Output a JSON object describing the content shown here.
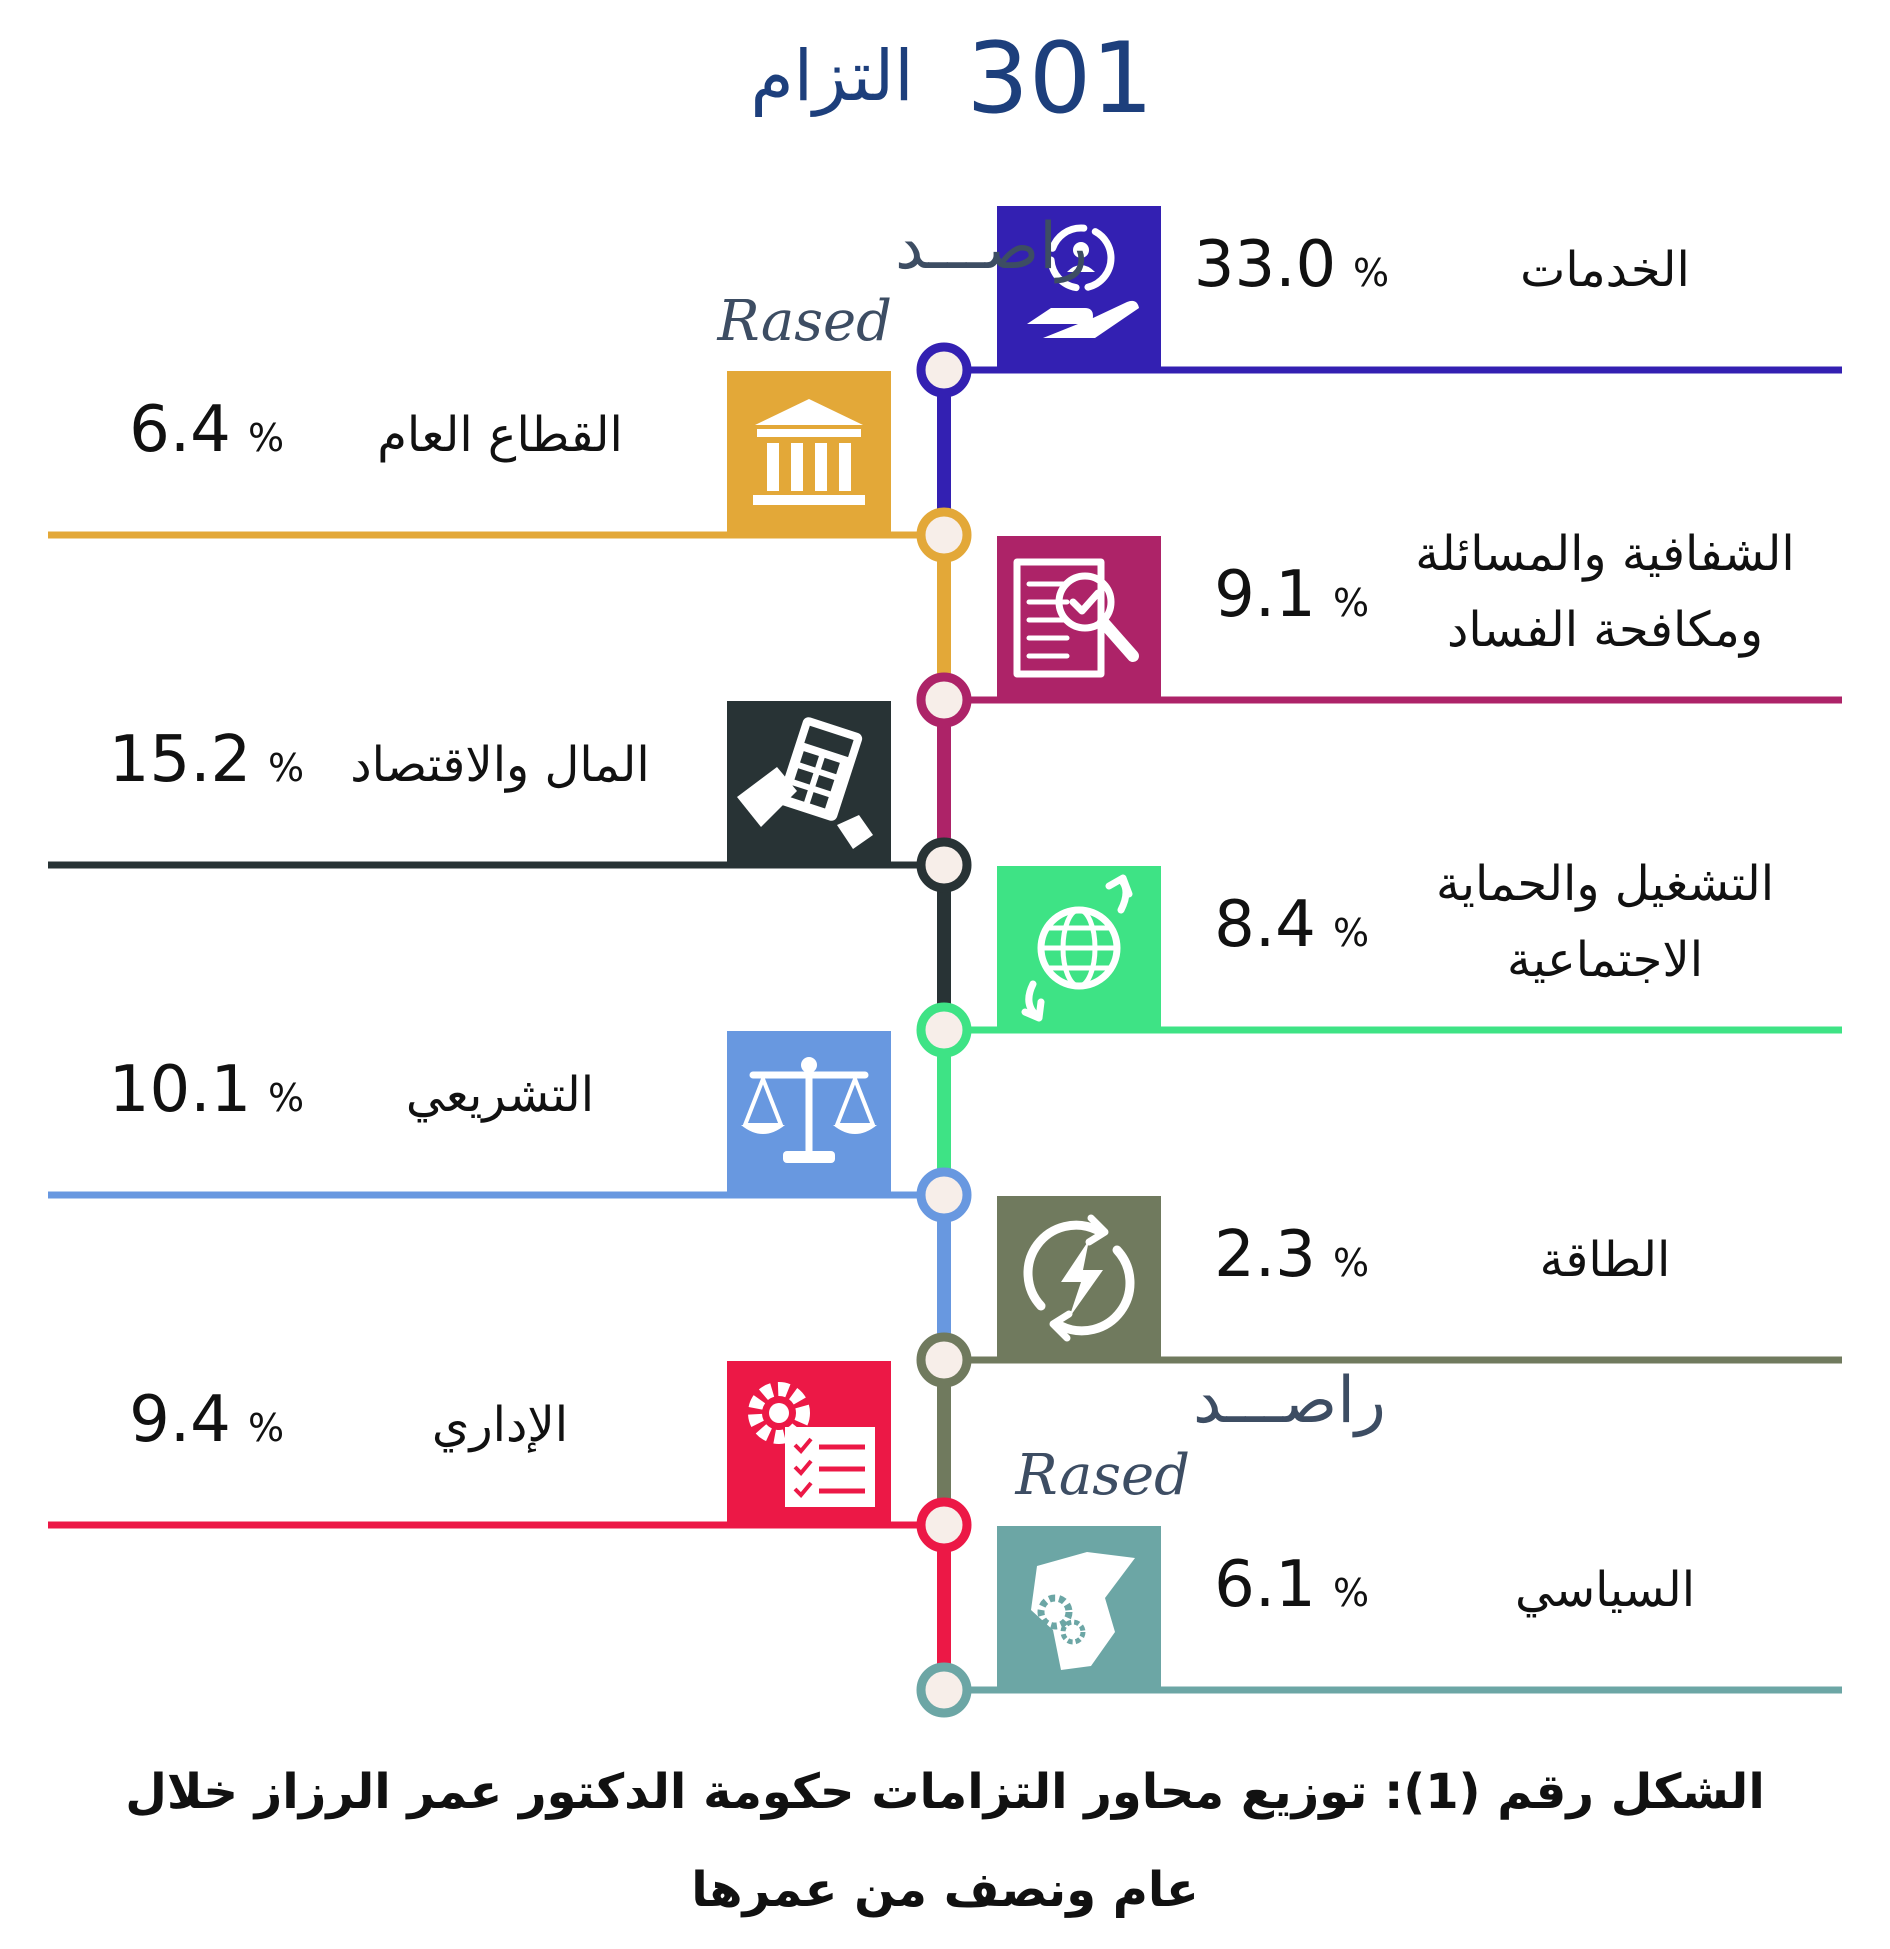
{
  "header": {
    "count": "301",
    "word": "التزام"
  },
  "brand": {
    "arabic": "راصـــد",
    "latin": "Rased"
  },
  "percent_symbol": "%",
  "caption": {
    "line1": "الشكل رقم (1): توزيع محاور التزامات حكومة الدكتور عمر الرزاز خلال",
    "line2": "عام ونصف من عمرها"
  },
  "chart_data": {
    "type": "bar",
    "categories": [
      "الخدمات",
      "القطاع العام",
      "الشفافية والمسائلة ومكافحة الفساد",
      "المال والاقتصاد",
      "التشغيل والحماية الاجتماعية",
      "التشريعي",
      "الطاقة",
      "الإداري",
      "السياسي"
    ],
    "values": [
      33.0,
      6.4,
      9.1,
      15.2,
      8.4,
      10.1,
      2.3,
      9.4,
      6.1
    ],
    "unit": "%",
    "total": 301
  },
  "items": [
    {
      "label_lines": [
        "الخدمات"
      ],
      "value": "33.0",
      "color": "#3320b2",
      "icon": "service-hand-icon"
    },
    {
      "label_lines": [
        "القطاع العام"
      ],
      "value": "6.4",
      "color": "#e3a838",
      "icon": "government-building-icon"
    },
    {
      "label_lines": [
        "الشفافية والمسائلة",
        "ومكافحة الفساد"
      ],
      "value": "9.1",
      "color": "#ad2368",
      "icon": "document-magnifier-icon"
    },
    {
      "label_lines": [
        "المال والاقتصاد"
      ],
      "value": "15.2",
      "color": "#283335",
      "icon": "calculator-hand-icon"
    },
    {
      "label_lines": [
        "التشغيل والحماية",
        "الاجتماعية"
      ],
      "value": "8.4",
      "color": "#3ee385",
      "icon": "globe-arrows-icon"
    },
    {
      "label_lines": [
        "التشريعي"
      ],
      "value": "10.1",
      "color": "#6898e0",
      "icon": "scales-icon"
    },
    {
      "label_lines": [
        "الطاقة"
      ],
      "value": "2.3",
      "color": "#707a5e",
      "icon": "energy-cycle-icon"
    },
    {
      "label_lines": [
        "الإداري"
      ],
      "value": "9.4",
      "color": "#ec1846",
      "icon": "gear-checklist-icon"
    },
    {
      "label_lines": [
        "السياسي"
      ],
      "value": "6.1",
      "color": "#6ca6a5",
      "icon": "jordan-map-gears-icon"
    }
  ]
}
